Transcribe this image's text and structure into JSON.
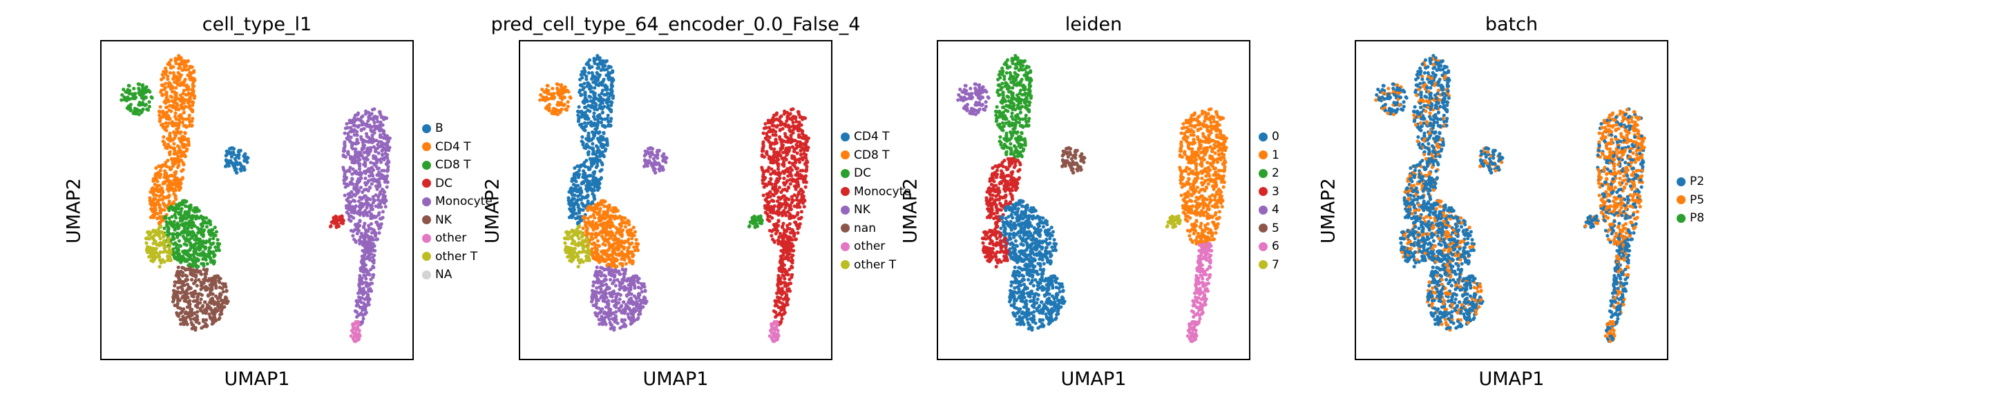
{
  "chart_data": [
    {
      "type": "scatter",
      "title": "cell_type_l1",
      "xlabel": "UMAP1",
      "ylabel": "UMAP2",
      "legend_position": "right",
      "legend": [
        {
          "label": "B",
          "color": "#1f77b4"
        },
        {
          "label": "CD4 T",
          "color": "#ff7f0e"
        },
        {
          "label": "CD8 T",
          "color": "#2ca02c"
        },
        {
          "label": "DC",
          "color": "#d62728"
        },
        {
          "label": "Monocyte",
          "color": "#9467bd"
        },
        {
          "label": "NK",
          "color": "#8c564b"
        },
        {
          "label": "other",
          "color": "#e377c2"
        },
        {
          "label": "other T",
          "color": "#bcbd22"
        },
        {
          "label": "NA",
          "color": "#d3d3d3"
        }
      ],
      "regions": {
        "left_top_small": "CD8 T",
        "top_arm": "CD4 T",
        "stem": "CD4 T",
        "right_blob": "B",
        "lower_center": "CD8 T",
        "lower_left": "other T",
        "bottom": "NK",
        "big_right": "Monocyte",
        "right_tail": "Monocyte",
        "tail_tip": "other",
        "small_left_of_big": "DC"
      }
    },
    {
      "type": "scatter",
      "title": "pred_cell_type_64_encoder_0.0_False_4",
      "xlabel": "UMAP1",
      "ylabel": "UMAP2",
      "legend_position": "right",
      "legend": [
        {
          "label": "CD4 T",
          "color": "#1f77b4"
        },
        {
          "label": "CD8 T",
          "color": "#ff7f0e"
        },
        {
          "label": "DC",
          "color": "#2ca02c"
        },
        {
          "label": "Monocyte",
          "color": "#d62728"
        },
        {
          "label": "NK",
          "color": "#9467bd"
        },
        {
          "label": "nan",
          "color": "#8c564b"
        },
        {
          "label": "other",
          "color": "#e377c2"
        },
        {
          "label": "other T",
          "color": "#bcbd22"
        }
      ],
      "regions": {
        "left_top_small": "CD8 T",
        "top_arm": "CD4 T",
        "stem": "CD4 T",
        "right_blob": "NK",
        "lower_center": "CD8 T",
        "lower_left": "other T",
        "bottom": "NK",
        "big_right": "Monocyte",
        "right_tail": "Monocyte",
        "tail_tip": "other",
        "small_left_of_big": "DC"
      }
    },
    {
      "type": "scatter",
      "title": "leiden",
      "xlabel": "UMAP1",
      "ylabel": "UMAP2",
      "legend_position": "right",
      "legend": [
        {
          "label": "0",
          "color": "#1f77b4"
        },
        {
          "label": "1",
          "color": "#ff7f0e"
        },
        {
          "label": "2",
          "color": "#2ca02c"
        },
        {
          "label": "3",
          "color": "#d62728"
        },
        {
          "label": "4",
          "color": "#9467bd"
        },
        {
          "label": "5",
          "color": "#8c564b"
        },
        {
          "label": "6",
          "color": "#e377c2"
        },
        {
          "label": "7",
          "color": "#bcbd22"
        }
      ],
      "regions": {
        "left_top_small": "4",
        "top_arm": "2",
        "stem": "3",
        "right_blob": "5",
        "lower_center": "0",
        "lower_left": "3",
        "bottom": "0",
        "big_right": "1",
        "right_tail": "6",
        "tail_tip": "6",
        "small_left_of_big": "7"
      }
    },
    {
      "type": "scatter",
      "title": "batch",
      "xlabel": "UMAP1",
      "ylabel": "UMAP2",
      "legend_position": "right",
      "legend": [
        {
          "label": "P2",
          "color": "#1f77b4"
        },
        {
          "label": "P5",
          "color": "#ff7f0e"
        },
        {
          "label": "P8",
          "color": "#2ca02c"
        }
      ],
      "regions": {
        "left_top_small": "P2",
        "top_arm": "P2",
        "stem": "P2",
        "right_blob": "P2",
        "lower_center": "P2",
        "lower_left": "P2",
        "bottom": "P2",
        "big_right": "P5",
        "right_tail": "P2",
        "tail_tip": "P5",
        "small_left_of_big": "P2"
      }
    }
  ]
}
